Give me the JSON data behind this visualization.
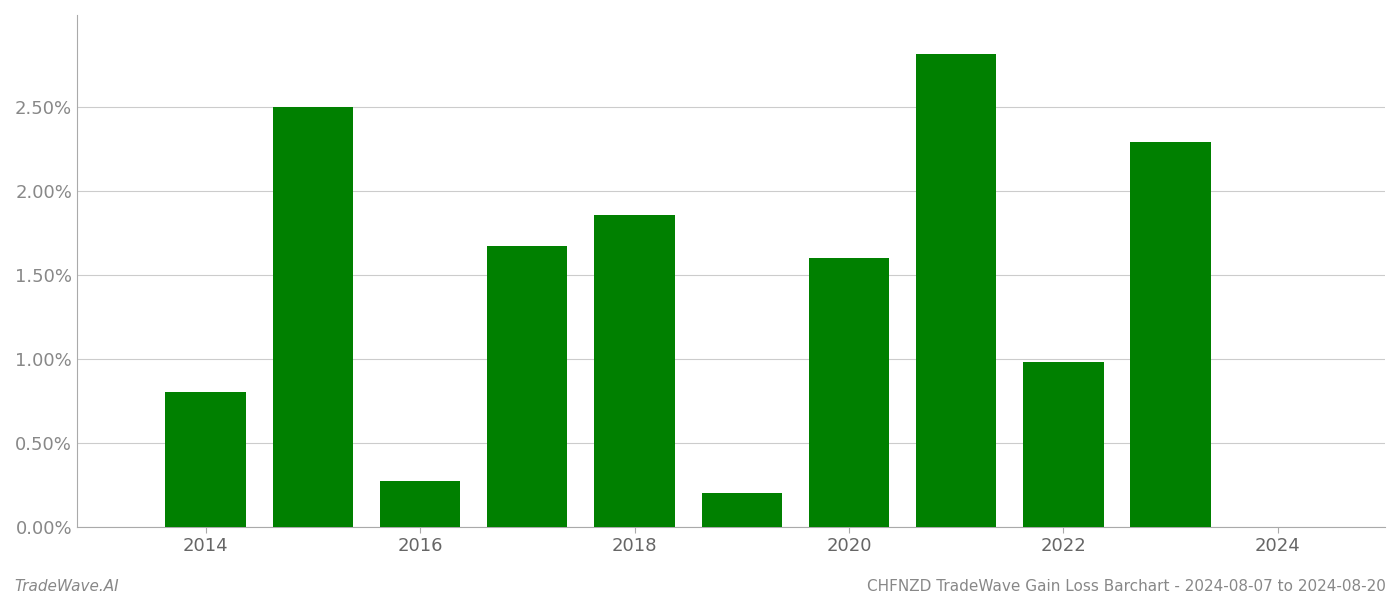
{
  "years": [
    2014,
    2015,
    2016,
    2017,
    2018,
    2019,
    2020,
    2021,
    2022,
    2023
  ],
  "values": [
    0.008,
    0.025,
    0.0027,
    0.0167,
    0.0186,
    0.002,
    0.016,
    0.0282,
    0.0098,
    0.0229
  ],
  "bar_color": "#008000",
  "background_color": "#ffffff",
  "grid_color": "#cccccc",
  "footer_left": "TradeWave.AI",
  "footer_right": "CHFNZD TradeWave Gain Loss Barchart - 2024-08-07 to 2024-08-20",
  "footer_color": "#888888",
  "ylim_min": 0.0,
  "ylim_max": 0.0305,
  "ytick_values": [
    0.0,
    0.005,
    0.01,
    0.015,
    0.02,
    0.025
  ],
  "ytick_labels": [
    "0.00%",
    "0.50%",
    "1.00%",
    "1.50%",
    "2.00%",
    "2.50%"
  ],
  "xtick_values": [
    2014,
    2016,
    2018,
    2020,
    2022,
    2024
  ],
  "xtick_labels": [
    "2014",
    "2016",
    "2018",
    "2020",
    "2022",
    "2024"
  ],
  "bar_width": 0.75,
  "xlim_left": 2012.8,
  "xlim_right": 2025.0
}
